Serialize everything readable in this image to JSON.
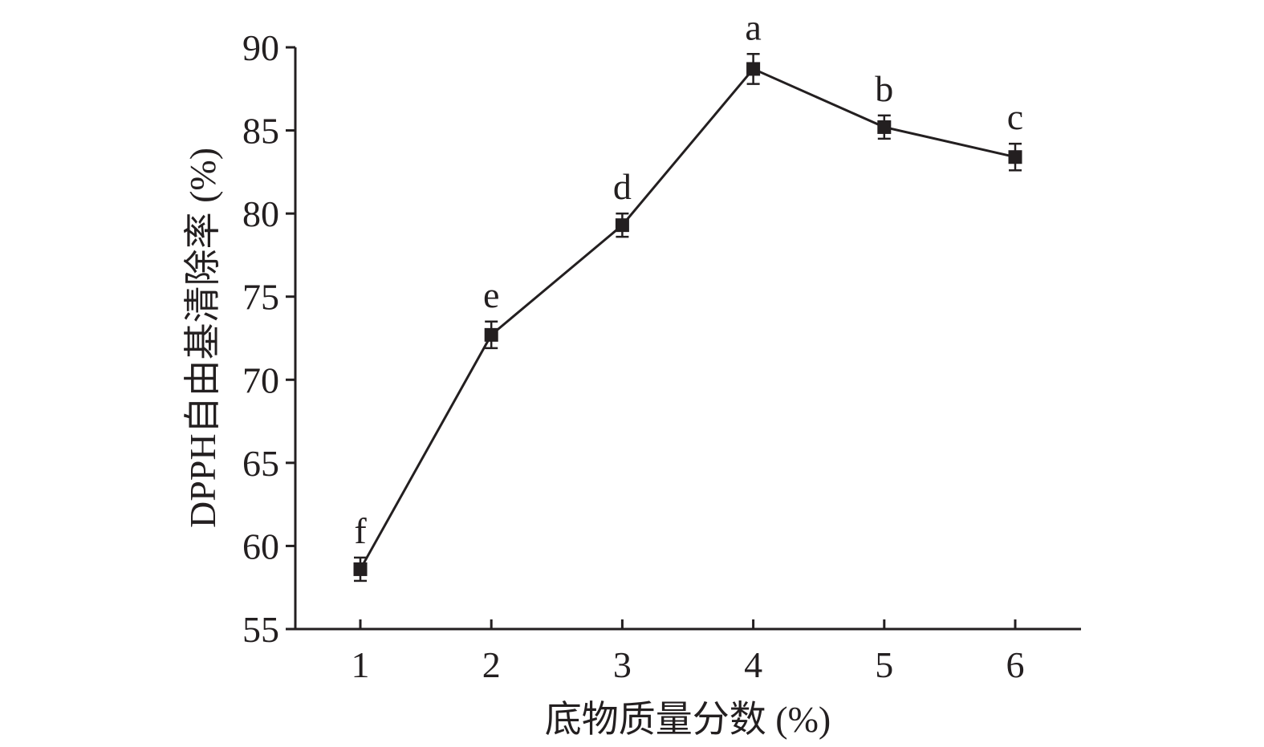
{
  "chart_data": {
    "type": "line",
    "title": "",
    "xlabel": "底物质量分数 (%)",
    "ylabel": "DPPH自由基清除率 (%)",
    "x": [
      1,
      2,
      3,
      4,
      5,
      6
    ],
    "x_tick_labels": [
      "1",
      "2",
      "3",
      "4",
      "5",
      "6"
    ],
    "xlim": [
      0.5,
      6.5
    ],
    "ylim": [
      55,
      90
    ],
    "y_ticks": [
      55,
      60,
      65,
      70,
      75,
      80,
      85,
      90
    ],
    "y_tick_labels": [
      "55",
      "60",
      "65",
      "70",
      "75",
      "80",
      "85",
      "90"
    ],
    "grid": false,
    "series": [
      {
        "values": [
          58.6,
          72.7,
          79.3,
          88.7,
          85.2,
          83.4
        ],
        "error": [
          0.7,
          0.8,
          0.7,
          0.9,
          0.7,
          0.8
        ],
        "point_labels": [
          "f",
          "e",
          "d",
          "a",
          "b",
          "c"
        ],
        "color": "#231f20",
        "marker": "square"
      }
    ]
  }
}
